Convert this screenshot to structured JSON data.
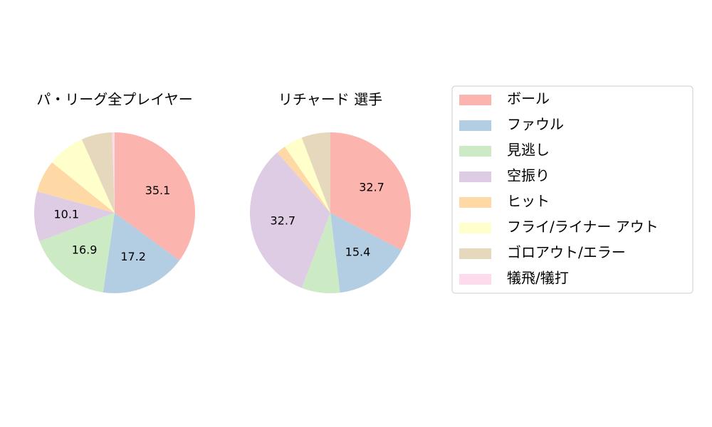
{
  "chart_data": [
    {
      "type": "pie",
      "title": "パ・リーグ全プレイヤー",
      "values": [
        35.1,
        17.2,
        16.9,
        10.1,
        6.5,
        7.5,
        6.2,
        0.5
      ],
      "value_labels": [
        "35.1",
        "17.2",
        "16.9",
        "10.1",
        null,
        null,
        null,
        null
      ]
    },
    {
      "type": "pie",
      "title": "リチャード  選手",
      "values": [
        32.7,
        15.4,
        7.7,
        32.7,
        1.9,
        3.8,
        5.8,
        0
      ],
      "value_labels": [
        "32.7",
        "15.4",
        null,
        "32.7",
        null,
        null,
        null,
        null
      ]
    }
  ],
  "legend": {
    "categories": [
      "ボール",
      "ファウル",
      "見逃し",
      "空振り",
      "ヒット",
      "フライ/ライナー アウト",
      "ゴロアウト/エラー",
      "犠飛/犠打"
    ],
    "colors": [
      "#fbb4ae",
      "#b3cde3",
      "#ccebc5",
      "#decbe4",
      "#fed9a6",
      "#ffffcc",
      "#e5d8bd",
      "#fddaec"
    ]
  }
}
